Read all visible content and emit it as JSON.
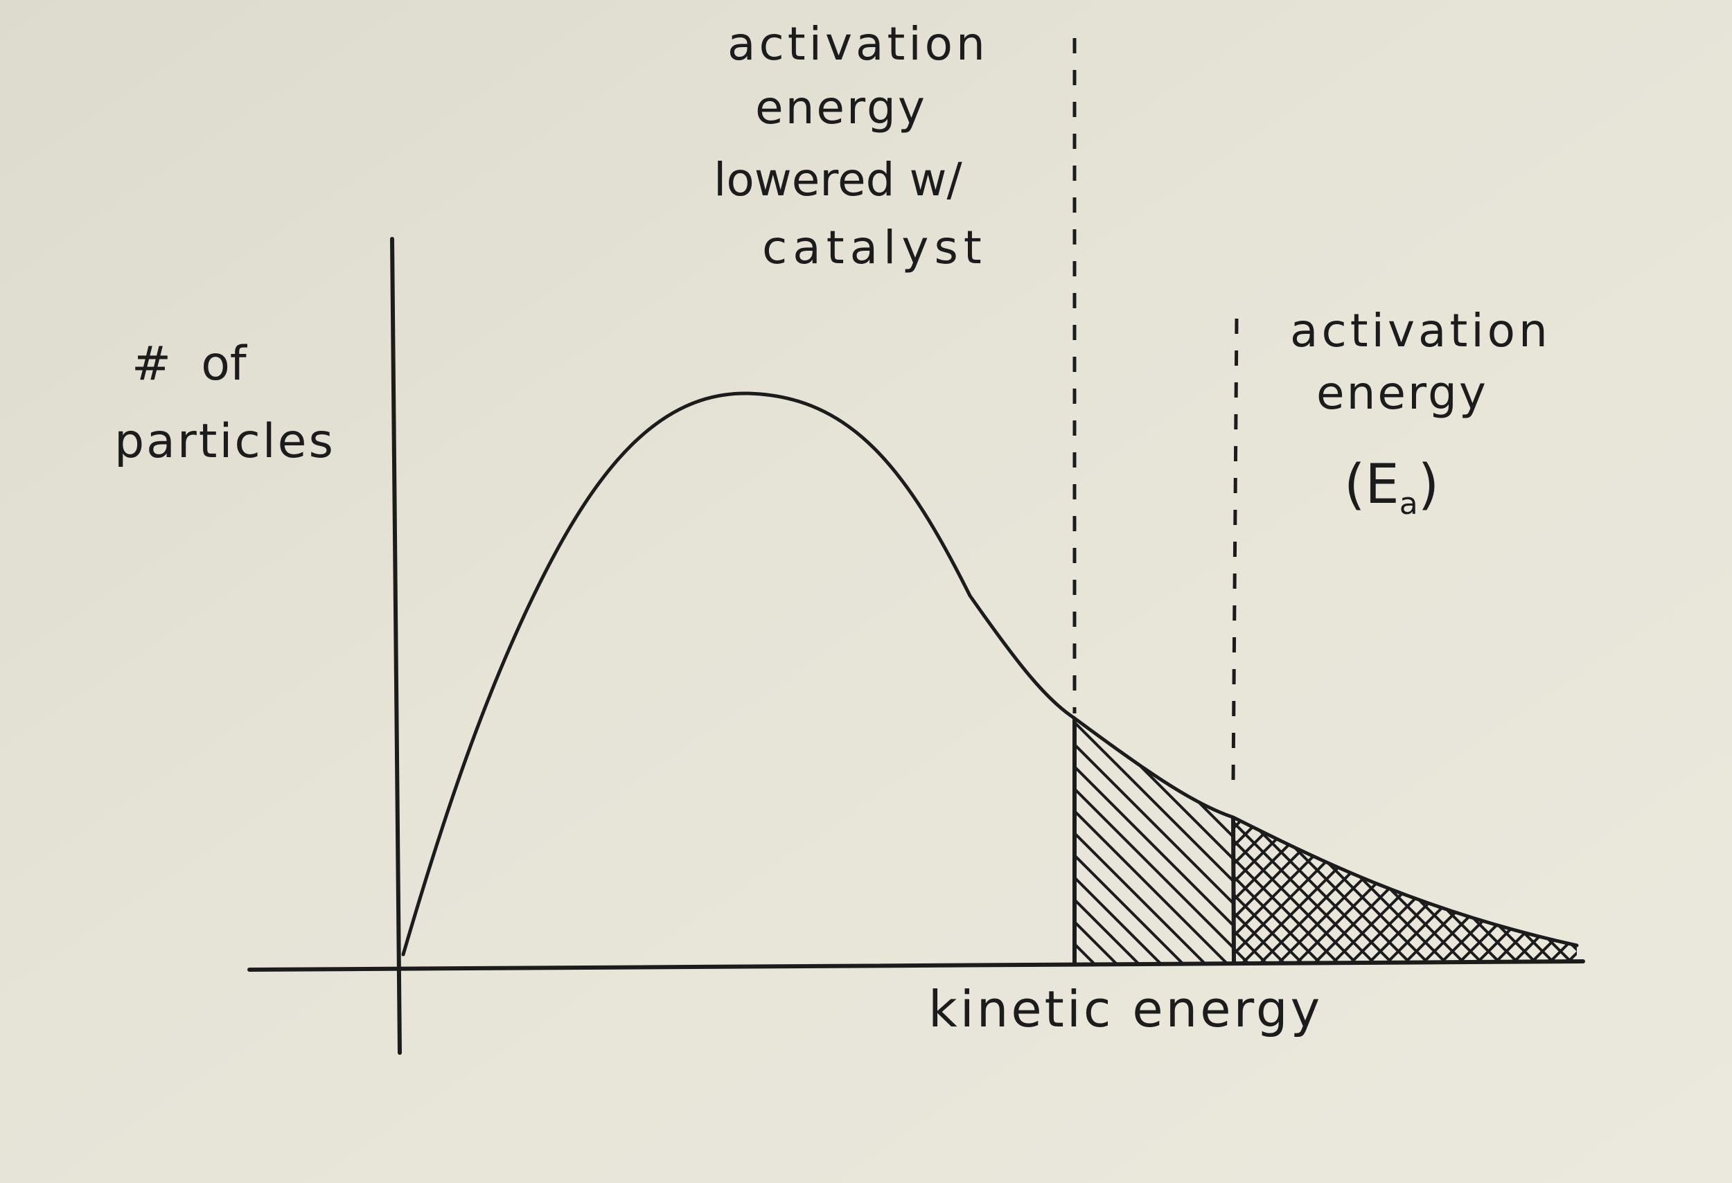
{
  "diagram": {
    "y_axis_label": [
      "#  of",
      "particles"
    ],
    "x_axis_label": "kinetic energy",
    "catalyst_label": [
      "activation",
      "energy",
      "lowered w/",
      "catalyst"
    ],
    "activation_label": [
      "activation",
      "energy",
      "(E",
      "a",
      ")"
    ],
    "colors": {
      "paper": "#e7e5d8",
      "ink": "#1c1c1c"
    }
  }
}
